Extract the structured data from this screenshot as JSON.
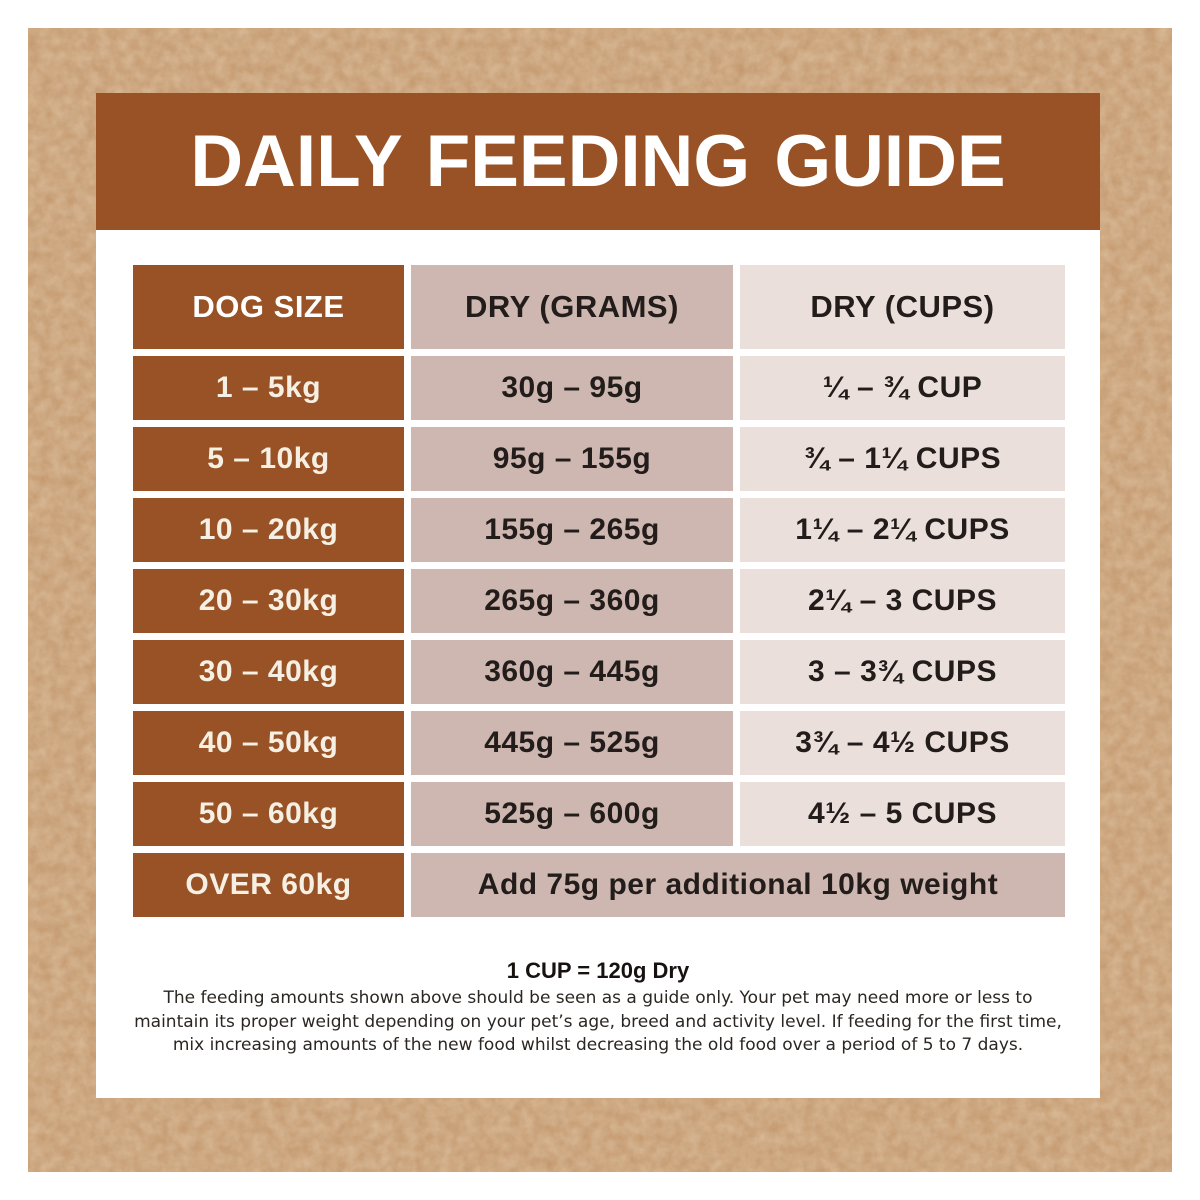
{
  "banner": {
    "title": "DAILY FEEDING GUIDE"
  },
  "table": {
    "columns": [
      "DOG SIZE",
      "DRY (GRAMS)",
      "DRY (CUPS)"
    ],
    "rows": [
      {
        "size": "1 – 5kg",
        "grams": "30g – 95g",
        "cups": "¼ – ¾ CUP"
      },
      {
        "size": "5 – 10kg",
        "grams": "95g – 155g",
        "cups": "¾ – 1¼ CUPS"
      },
      {
        "size": "10 – 20kg",
        "grams": "155g – 265g",
        "cups": "1¼ – 2¼ CUPS"
      },
      {
        "size": "20 – 30kg",
        "grams": "265g – 360g",
        "cups": "2¼ – 3 CUPS"
      },
      {
        "size": "30 – 40kg",
        "grams": "360g – 445g",
        "cups": "3 – 3¾ CUPS"
      },
      {
        "size": "40 – 50kg",
        "grams": "445g – 525g",
        "cups": "3¾ – 4½ CUPS"
      },
      {
        "size": "50 – 60kg",
        "grams": "525g – 600g",
        "cups": "4½ – 5 CUPS"
      }
    ],
    "overflow_row": {
      "size": "OVER 60kg",
      "note": "Add 75g per additional 10kg weight"
    }
  },
  "footnotes": {
    "cup_equivalence": "1 CUP = 120g Dry",
    "disclaimer_lines": [
      "The feeding amounts shown above should be seen as a guide only. Your pet may need more or less to",
      "maintain its proper weight depending on your pet’s age, breed and activity level. If feeding for the first time,",
      "mix increasing amounts of the new food whilst decreasing the old food over a period of 5 to 7 days."
    ]
  },
  "colors": {
    "frame_tan": "#c2956a",
    "banner_brown": "#985225",
    "grams_mauve": "#cfb7b1",
    "cups_pink": "#ebdfdc",
    "cream_text": "#f6efe3",
    "dark_text": "#221d1a"
  }
}
